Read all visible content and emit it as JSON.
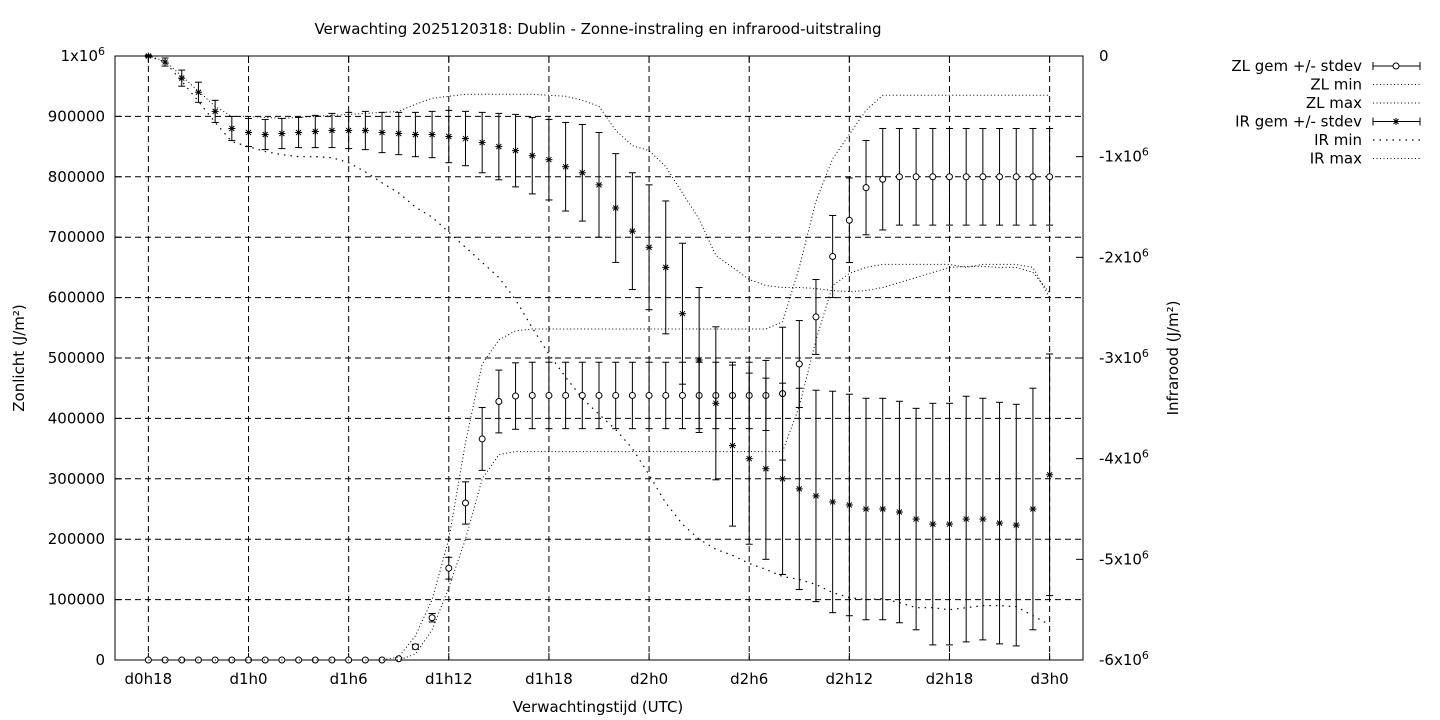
{
  "chart_data": {
    "type": "line",
    "title": "Verwachting 2025120318: Dublin - Zonne-instraling en infrarood-uitstraling",
    "xlabel": "Verwachtingstijd (UTC)",
    "ylabel": "Zonlicht (J/m²)",
    "y2label": "Infrarood (J/m²)",
    "grid": true,
    "legend_position": "top-right outside",
    "x_hours": [
      18,
      19,
      20,
      21,
      22,
      23,
      24,
      25,
      26,
      27,
      28,
      29,
      30,
      31,
      32,
      33,
      34,
      35,
      36,
      37,
      38,
      39,
      40,
      41,
      42,
      43,
      44,
      45,
      46,
      47,
      48,
      49,
      50,
      51,
      52,
      53,
      54,
      55,
      56,
      57,
      58,
      59,
      60,
      61,
      62,
      63,
      64,
      65,
      66,
      67,
      68,
      69,
      70,
      71,
      72
    ],
    "xlim": [
      16,
      74
    ],
    "xticks": [
      {
        "value": 18,
        "label": "d0h18"
      },
      {
        "value": 24,
        "label": "d1h0"
      },
      {
        "value": 30,
        "label": "d1h6"
      },
      {
        "value": 36,
        "label": "d1h12"
      },
      {
        "value": 42,
        "label": "d1h18"
      },
      {
        "value": 48,
        "label": "d2h0"
      },
      {
        "value": 54,
        "label": "d2h6"
      },
      {
        "value": 60,
        "label": "d2h12"
      },
      {
        "value": 66,
        "label": "d2h18"
      },
      {
        "value": 72,
        "label": "d3h0"
      }
    ],
    "ylim": [
      0,
      1000000
    ],
    "yticks": [
      {
        "value": 0,
        "label": "0"
      },
      {
        "value": 100000,
        "label": "100000"
      },
      {
        "value": 200000,
        "label": "200000"
      },
      {
        "value": 300000,
        "label": "300000"
      },
      {
        "value": 400000,
        "label": "400000"
      },
      {
        "value": 500000,
        "label": "500000"
      },
      {
        "value": 600000,
        "label": "600000"
      },
      {
        "value": 700000,
        "label": "700000"
      },
      {
        "value": 800000,
        "label": "800000"
      },
      {
        "value": 900000,
        "label": "900000"
      },
      {
        "value": 1000000,
        "label": "1x10",
        "sup": "6"
      }
    ],
    "y2lim": [
      -6000000,
      0
    ],
    "y2ticks": [
      {
        "value": 0,
        "label": "0"
      },
      {
        "value": -1000000,
        "label": "-1x10",
        "sup": "6"
      },
      {
        "value": -2000000,
        "label": "-2x10",
        "sup": "6"
      },
      {
        "value": -3000000,
        "label": "-3x10",
        "sup": "6"
      },
      {
        "value": -4000000,
        "label": "-4x10",
        "sup": "6"
      },
      {
        "value": -5000000,
        "label": "-5x10",
        "sup": "6"
      },
      {
        "value": -6000000,
        "label": "-6x10",
        "sup": "6"
      }
    ],
    "series": [
      {
        "name": "ZL gem +/- stdev",
        "axis": "y1",
        "style": "errorbar-circle",
        "values": [
          0,
          0,
          0,
          0,
          0,
          0,
          0,
          0,
          0,
          0,
          0,
          0,
          0,
          0,
          0,
          2000,
          22000,
          70000,
          152000,
          260000,
          366000,
          428000,
          437000,
          438000,
          438000,
          438000,
          438000,
          438000,
          438000,
          438000,
          438000,
          438000,
          438000,
          438000,
          438000,
          438000,
          438000,
          438000,
          441000,
          490000,
          568000,
          668000,
          728000,
          782000,
          796000,
          800000,
          800000,
          800000,
          800000,
          800000,
          800000,
          800000,
          800000,
          800000,
          800000
        ],
        "stdev": [
          0,
          0,
          0,
          0,
          0,
          0,
          0,
          0,
          0,
          0,
          0,
          0,
          0,
          0,
          0,
          2000,
          4000,
          7000,
          18000,
          35000,
          52000,
          52000,
          55000,
          55000,
          55000,
          55000,
          55000,
          55000,
          55000,
          55000,
          55000,
          55000,
          55000,
          55000,
          55000,
          55000,
          55000,
          58000,
          110000,
          72000,
          62000,
          68000,
          70000,
          78000,
          84000,
          80000,
          80000,
          80000,
          80000,
          80000,
          80000,
          80000,
          80000,
          80000,
          80000
        ]
      },
      {
        "name": "ZL min",
        "axis": "y1",
        "style": "dotted",
        "values": [
          0,
          0,
          0,
          0,
          0,
          0,
          0,
          0,
          0,
          0,
          0,
          0,
          0,
          0,
          0,
          0,
          10000,
          50000,
          120000,
          200000,
          300000,
          340000,
          345000,
          345000,
          345000,
          345000,
          345000,
          345000,
          345000,
          345000,
          345000,
          345000,
          345000,
          345000,
          345000,
          345000,
          345000,
          345000,
          345000,
          420000,
          530000,
          620000,
          640000,
          650000,
          655000,
          655000,
          655000,
          655000,
          655000,
          650000,
          655000,
          655000,
          655000,
          650000,
          600000
        ]
      },
      {
        "name": "ZL max",
        "axis": "y1",
        "style": "dotted",
        "values": [
          0,
          0,
          0,
          0,
          0,
          0,
          0,
          0,
          0,
          0,
          0,
          0,
          0,
          0,
          0,
          5000,
          40000,
          100000,
          200000,
          360000,
          490000,
          530000,
          545000,
          548000,
          548000,
          548000,
          548000,
          548000,
          548000,
          548000,
          548000,
          548000,
          548000,
          548000,
          548000,
          548000,
          548000,
          548000,
          560000,
          650000,
          760000,
          830000,
          870000,
          910000,
          935000,
          935000,
          935000,
          935000,
          935000,
          935000,
          935000,
          935000,
          935000,
          935000,
          935000
        ]
      },
      {
        "name": "IR gem +/- stdev",
        "axis": "y2",
        "style": "errorbar-star",
        "values": [
          0,
          -60000,
          -220000,
          -360000,
          -550000,
          -720000,
          -760000,
          -780000,
          -770000,
          -760000,
          -750000,
          -740000,
          -740000,
          -740000,
          -760000,
          -770000,
          -780000,
          -780000,
          -800000,
          -820000,
          -860000,
          -900000,
          -940000,
          -990000,
          -1030000,
          -1100000,
          -1160000,
          -1280000,
          -1510000,
          -1740000,
          -1900000,
          -2100000,
          -2560000,
          -3020000,
          -3450000,
          -3870000,
          -4000000,
          -4100000,
          -4200000,
          -4300000,
          -4370000,
          -4430000,
          -4460000,
          -4500000,
          -4500000,
          -4530000,
          -4600000,
          -4650000,
          -4650000,
          -4600000,
          -4600000,
          -4640000,
          -4660000,
          -4500000,
          -4160000
        ],
        "stdev": [
          10000,
          40000,
          80000,
          100000,
          110000,
          120000,
          140000,
          150000,
          150000,
          150000,
          160000,
          170000,
          180000,
          190000,
          200000,
          210000,
          220000,
          230000,
          260000,
          270000,
          300000,
          330000,
          360000,
          380000,
          400000,
          440000,
          480000,
          520000,
          540000,
          580000,
          620000,
          660000,
          700000,
          720000,
          760000,
          800000,
          850000,
          900000,
          950000,
          1000000,
          1050000,
          1100000,
          1100000,
          1100000,
          1100000,
          1100000,
          1100000,
          1200000,
          1200000,
          1220000,
          1200000,
          1200000,
          1200000,
          1200000,
          1200000
        ]
      },
      {
        "name": "IR min",
        "axis": "y2",
        "style": "dotted-coarse",
        "values": [
          0,
          -60000,
          -250000,
          -450000,
          -660000,
          -850000,
          -900000,
          -950000,
          -980000,
          -1000000,
          -1000000,
          -1010000,
          -1060000,
          -1150000,
          -1260000,
          -1360000,
          -1500000,
          -1600000,
          -1750000,
          -1900000,
          -2050000,
          -2200000,
          -2420000,
          -2700000,
          -2960000,
          -3190000,
          -3400000,
          -3560000,
          -3710000,
          -3900000,
          -4160000,
          -4440000,
          -4650000,
          -4800000,
          -4900000,
          -4960000,
          -5040000,
          -5100000,
          -5170000,
          -5200000,
          -5250000,
          -5330000,
          -5380000,
          -5400000,
          -5390000,
          -5430000,
          -5480000,
          -5480000,
          -5500000,
          -5480000,
          -5460000,
          -5460000,
          -5470000,
          -5560000,
          -5650000
        ]
      },
      {
        "name": "IR max",
        "axis": "y2",
        "style": "dotted",
        "values": [
          0,
          -50000,
          -200000,
          -350000,
          -500000,
          -600000,
          -600000,
          -610000,
          -620000,
          -610000,
          -600000,
          -590000,
          -580000,
          -570000,
          -560000,
          -550000,
          -480000,
          -420000,
          -400000,
          -380000,
          -380000,
          -380000,
          -380000,
          -380000,
          -390000,
          -400000,
          -440000,
          -500000,
          -740000,
          -890000,
          -940000,
          -1100000,
          -1360000,
          -1620000,
          -1980000,
          -2100000,
          -2220000,
          -2280000,
          -2300000,
          -2300000,
          -2310000,
          -2330000,
          -2340000,
          -2330000,
          -2300000,
          -2250000,
          -2200000,
          -2150000,
          -2100000,
          -2090000,
          -2090000,
          -2100000,
          -2100000,
          -2150000,
          -2350000
        ]
      }
    ]
  }
}
